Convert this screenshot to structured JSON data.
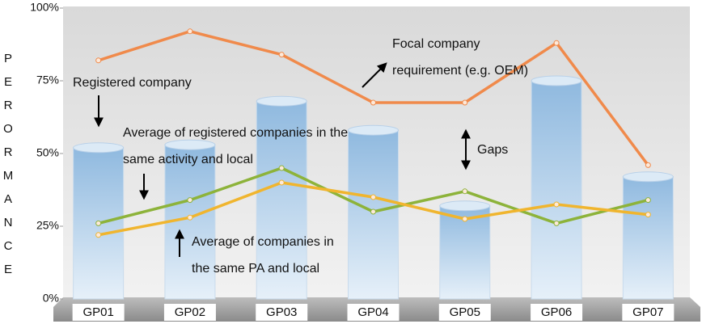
{
  "chart_data": {
    "type": "bar-line",
    "y_label": "PERORMANCE",
    "categories": [
      "GP01",
      "GP02",
      "GP03",
      "GP04",
      "GP05",
      "GP06",
      "GP07"
    ],
    "ylim": [
      0,
      100
    ],
    "yticks": [
      {
        "value": 0,
        "label": "0%"
      },
      {
        "value": 25,
        "label": "25%"
      },
      {
        "value": 50,
        "label": "50%"
      },
      {
        "value": 75,
        "label": "75%"
      },
      {
        "value": 100,
        "label": "100%"
      }
    ],
    "series": [
      {
        "type": "bar",
        "color": "#9cc3e4",
        "values": [
          52,
          53,
          68,
          58,
          32,
          75,
          42
        ]
      },
      {
        "type": "line",
        "color": "#f08a4b",
        "values": [
          82,
          92,
          84,
          67.5,
          67.5,
          88,
          46
        ]
      },
      {
        "type": "line",
        "color": "#8db33a",
        "values": [
          26,
          34,
          45,
          30,
          37,
          26,
          34
        ]
      },
      {
        "type": "line",
        "color": "#f0b52e",
        "values": [
          22,
          28,
          40,
          35,
          27.5,
          32.5,
          29
        ]
      }
    ],
    "annotations": [
      {
        "lines": [
          "Registered company"
        ]
      },
      {
        "lines": [
          "Focal company",
          "requirement (e.g. OEM)"
        ]
      },
      {
        "lines": [
          "Average of registered companies in the",
          "same activity and local"
        ]
      },
      {
        "lines": [
          "Gaps"
        ]
      },
      {
        "lines": [
          "Average of companies in",
          "the same PA and local"
        ]
      }
    ]
  }
}
